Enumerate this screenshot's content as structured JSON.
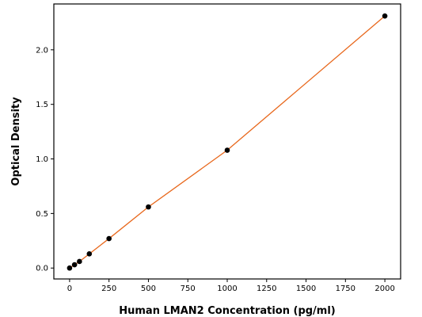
{
  "chart_data": {
    "type": "scatter",
    "title": "",
    "xlabel": "Human LMAN2 Concentration (pg/ml)",
    "ylabel": "Optical Density",
    "xlim": [
      -100,
      2100
    ],
    "ylim": [
      -0.1,
      2.42
    ],
    "xticks": [
      0,
      250,
      500,
      750,
      1000,
      1250,
      1500,
      1750,
      2000
    ],
    "yticks": [
      0.0,
      0.5,
      1.0,
      1.5,
      2.0
    ],
    "ytick_labels": [
      "0.0",
      "0.5",
      "1.0",
      "1.5",
      "2.0"
    ],
    "grid": false,
    "legend": "none",
    "series": [
      {
        "marker_color": "#000000",
        "line_color": "#e8671b",
        "x": [
          0,
          31.25,
          62.5,
          125,
          250,
          500,
          1000,
          2000
        ],
        "y": [
          0.0,
          0.03,
          0.06,
          0.13,
          0.27,
          0.56,
          1.08,
          2.31
        ]
      }
    ]
  }
}
